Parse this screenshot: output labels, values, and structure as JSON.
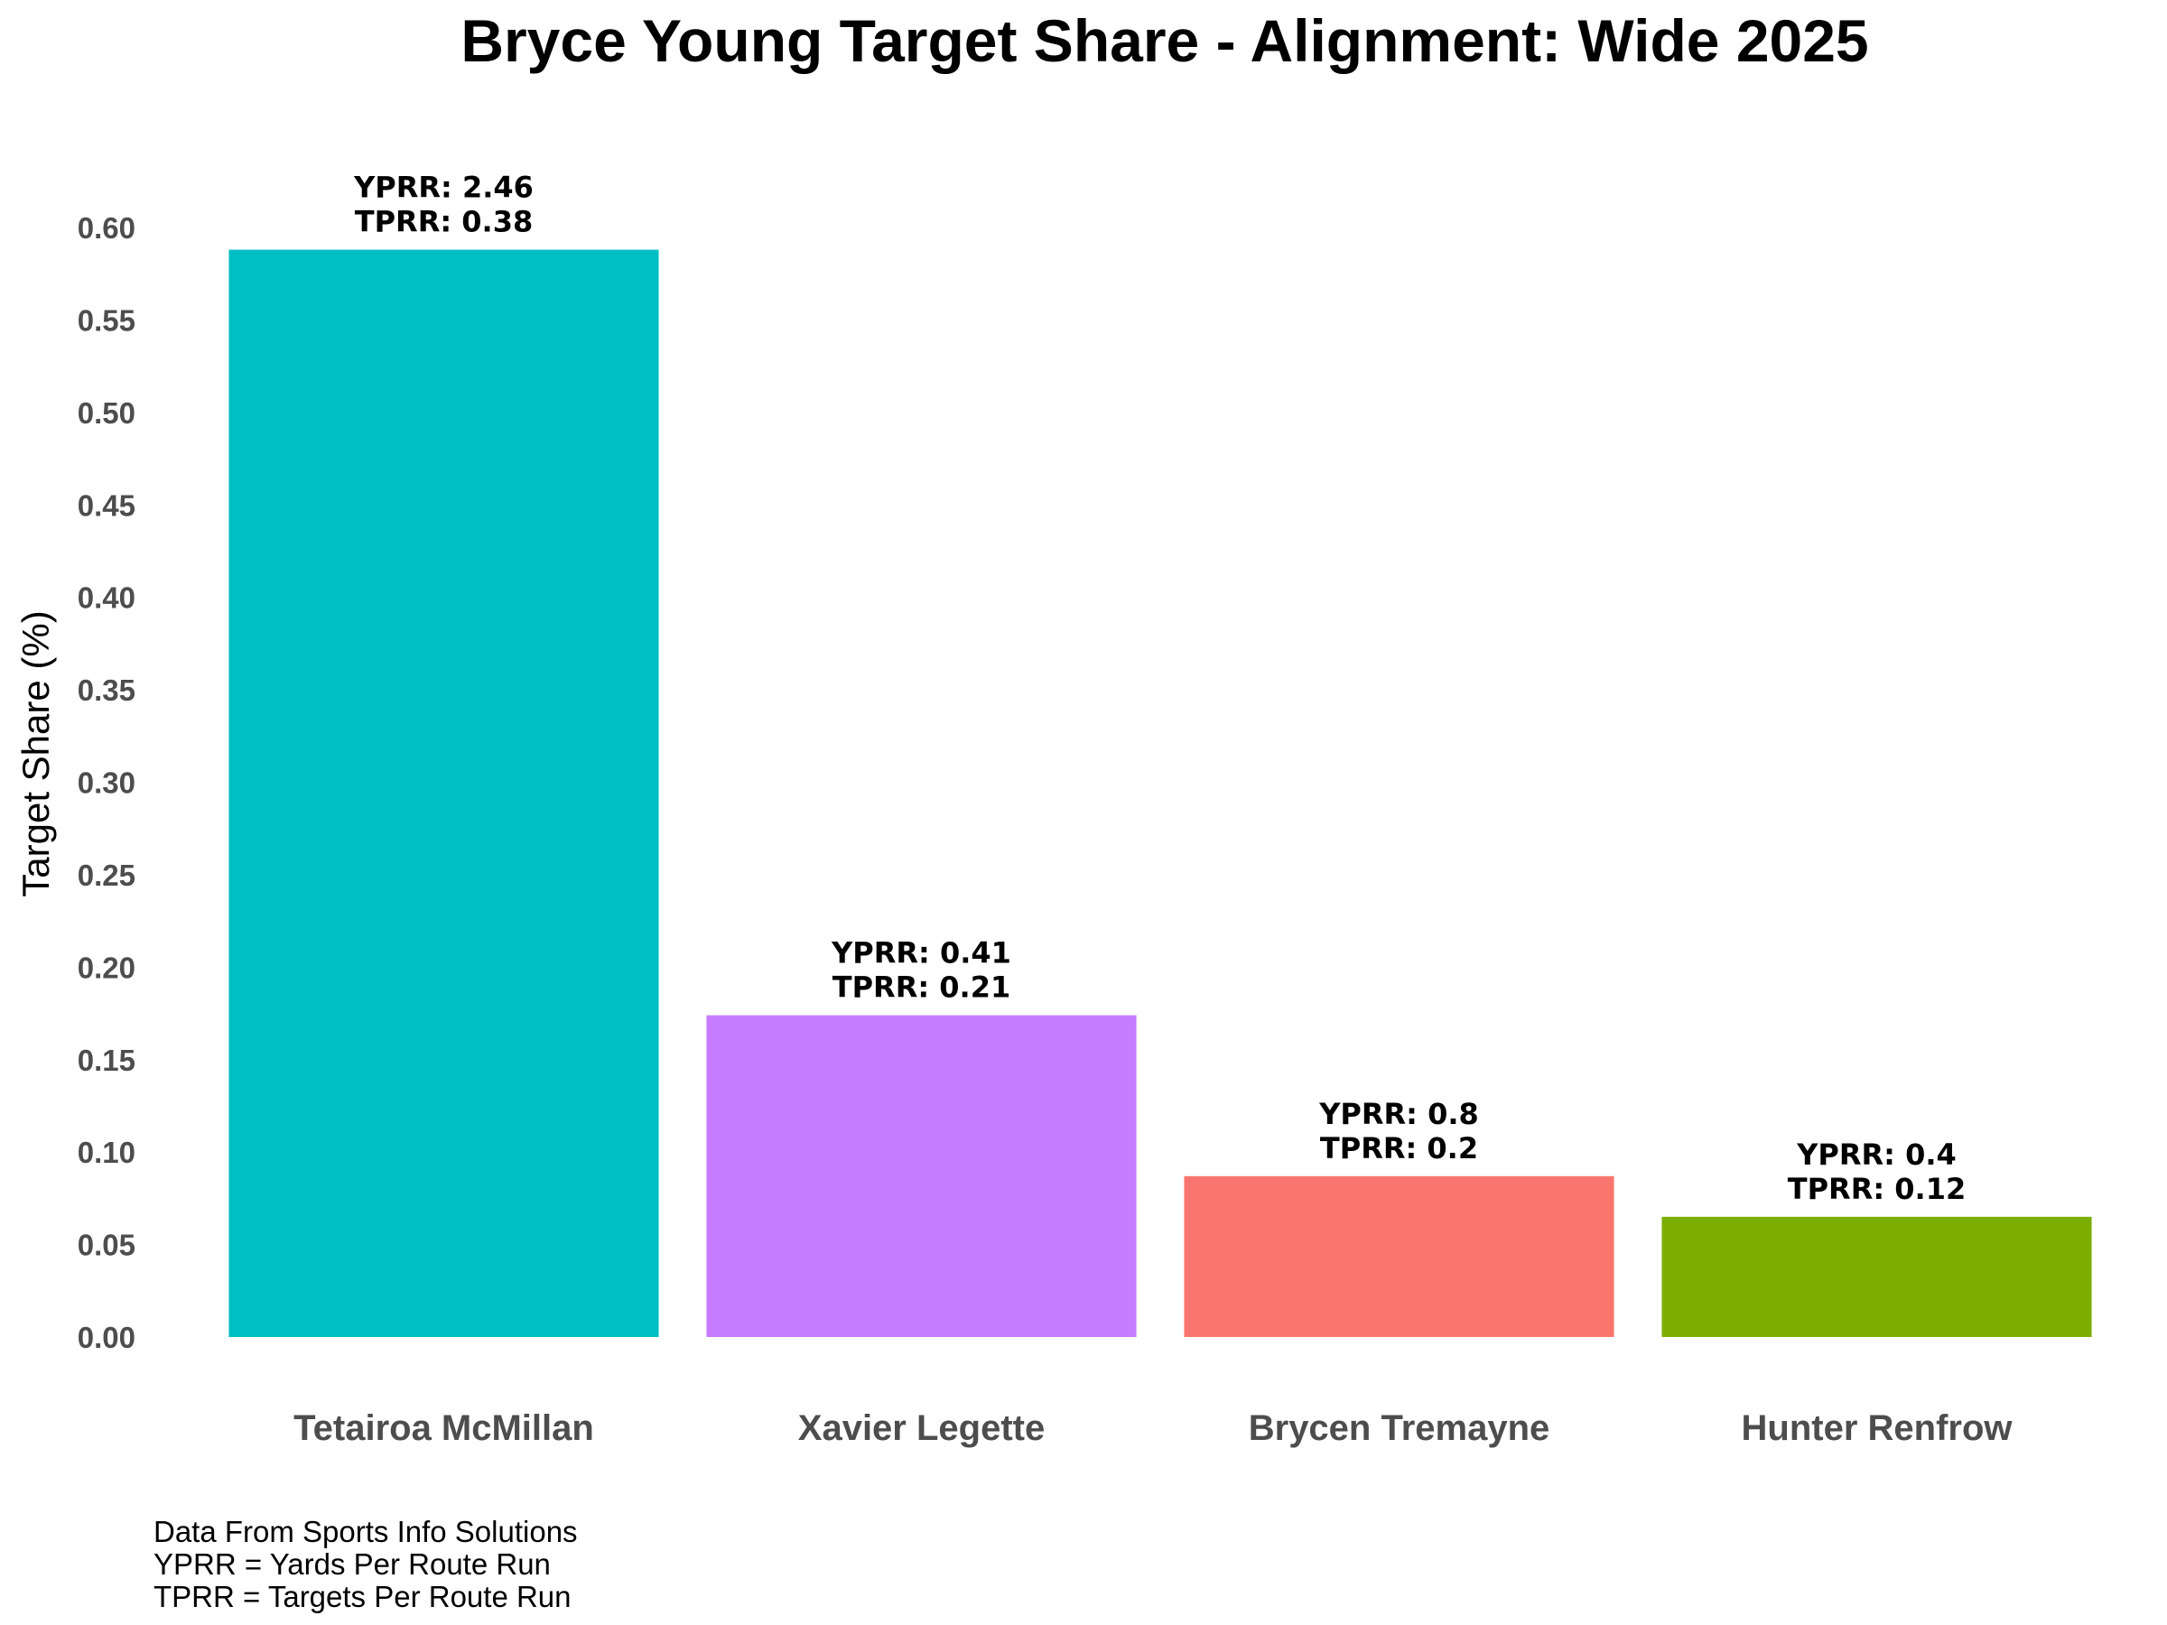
{
  "chart_data": {
    "type": "bar",
    "title": "Bryce Young Target Share - Alignment: Wide 2025",
    "xlabel": "",
    "ylabel": "Target Share (%)",
    "ylim": [
      0,
      0.6
    ],
    "yticks": [
      "0.00",
      "0.05",
      "0.10",
      "0.15",
      "0.20",
      "0.25",
      "0.30",
      "0.35",
      "0.40",
      "0.45",
      "0.50",
      "0.55",
      "0.60"
    ],
    "grid": false,
    "legend": "none",
    "categories": [
      "Tetairoa McMillan",
      "Xavier Legette",
      "Brycen Tremayne",
      "Hunter Renfrow"
    ],
    "values": [
      0.588,
      0.174,
      0.087,
      0.065
    ],
    "colors": [
      "#00BFC4",
      "#C77CFF",
      "#F8766D",
      "#7CAE00"
    ],
    "annotations": [
      {
        "line1": "YPRR: 2.46",
        "line2": "TPRR: 0.38"
      },
      {
        "line1": "YPRR: 0.41",
        "line2": "TPRR: 0.21"
      },
      {
        "line1": "YPRR: 0.8",
        "line2": "TPRR: 0.2"
      },
      {
        "line1": "YPRR: 0.4",
        "line2": "TPRR: 0.12"
      }
    ],
    "caption": [
      "Data From Sports Info Solutions",
      "YPRR = Yards Per Route Run",
      "TPRR = Targets Per Route Run"
    ]
  }
}
